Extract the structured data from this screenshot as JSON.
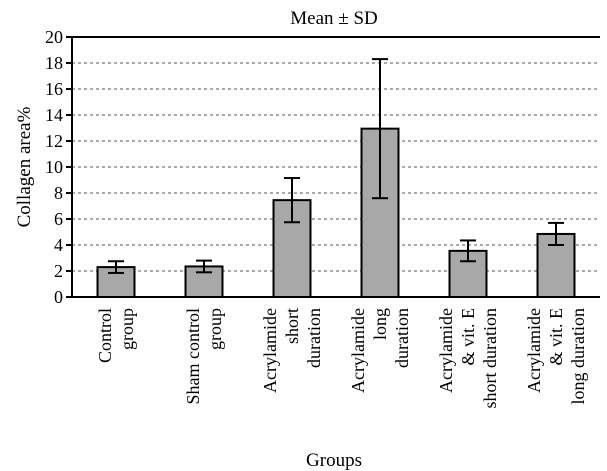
{
  "chart_data": {
    "type": "bar",
    "title": "Mean ± SD",
    "xlabel": "Groups",
    "ylabel": "Collagen area%",
    "ylim": [
      0,
      20
    ],
    "yticks": [
      0,
      2,
      4,
      6,
      8,
      10,
      12,
      14,
      16,
      18,
      20
    ],
    "grid": "horizontal dashed",
    "categories": [
      [
        "Control",
        "group"
      ],
      [
        "Sham control",
        "group"
      ],
      [
        "Acrylamide",
        "short",
        "duration"
      ],
      [
        "Acrylamide",
        "long",
        "duration"
      ],
      [
        "Acrylamide",
        "& vit. E",
        "short duration"
      ],
      [
        "Acrylamide",
        "& vit. E",
        "long duration"
      ]
    ],
    "values": [
      2.3,
      2.35,
      7.45,
      12.95,
      3.55,
      4.85
    ],
    "sd": [
      0.45,
      0.45,
      1.7,
      5.35,
      0.8,
      0.85
    ],
    "colors": {
      "bar": "#a8a8a8",
      "edge": "#000000",
      "grid": "#555555"
    }
  }
}
